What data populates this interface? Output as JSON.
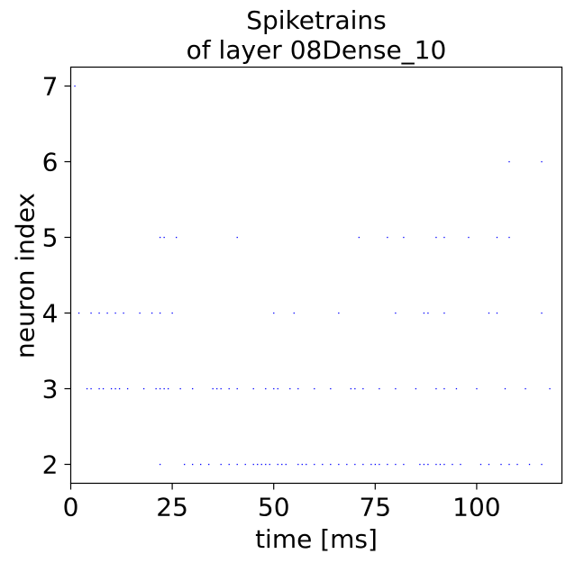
{
  "chart_data": {
    "type": "scatter",
    "title_line1": "Spiketrains",
    "title_line2": "of layer 08Dense_10",
    "xlabel": "time [ms]",
    "ylabel": "neuron index",
    "xlim": [
      0,
      121
    ],
    "ylim": [
      1.75,
      7.25
    ],
    "x_ticks": [
      "0",
      "25",
      "50",
      "75",
      "100"
    ],
    "y_ticks": [
      "2",
      "3",
      "4",
      "5",
      "6",
      "7"
    ],
    "marker_color": "#0000ff",
    "series": [
      {
        "neuron": 7,
        "times": [
          1
        ]
      },
      {
        "neuron": 6,
        "times": [
          108,
          116
        ]
      },
      {
        "neuron": 5,
        "times": [
          22,
          23,
          26,
          41,
          71,
          78,
          82,
          90,
          92,
          98,
          105,
          108
        ]
      },
      {
        "neuron": 4,
        "times": [
          2,
          5,
          7,
          9,
          11,
          13,
          17,
          20,
          22,
          25,
          50,
          55,
          66,
          80,
          87,
          88,
          92,
          103,
          105,
          116
        ]
      },
      {
        "neuron": 3,
        "times": [
          4,
          5,
          7,
          8,
          10,
          11,
          12,
          14,
          18,
          21,
          22,
          23,
          24,
          27,
          30,
          35,
          36,
          37,
          39,
          41,
          45,
          48,
          50,
          51,
          54,
          56,
          60,
          64,
          69,
          70,
          72,
          76,
          80,
          85,
          90,
          92,
          95,
          100,
          107,
          112,
          118
        ]
      },
      {
        "neuron": 2,
        "times": [
          22,
          28,
          30,
          32,
          34,
          37,
          39,
          41,
          43,
          45,
          46,
          47,
          48,
          49,
          51,
          52,
          53,
          56,
          57,
          58,
          60,
          62,
          64,
          66,
          68,
          70,
          72,
          74,
          75,
          76,
          78,
          80,
          82,
          86,
          87,
          88,
          90,
          91,
          92,
          94,
          96,
          101,
          103,
          106,
          108,
          110,
          113,
          116
        ]
      }
    ]
  }
}
